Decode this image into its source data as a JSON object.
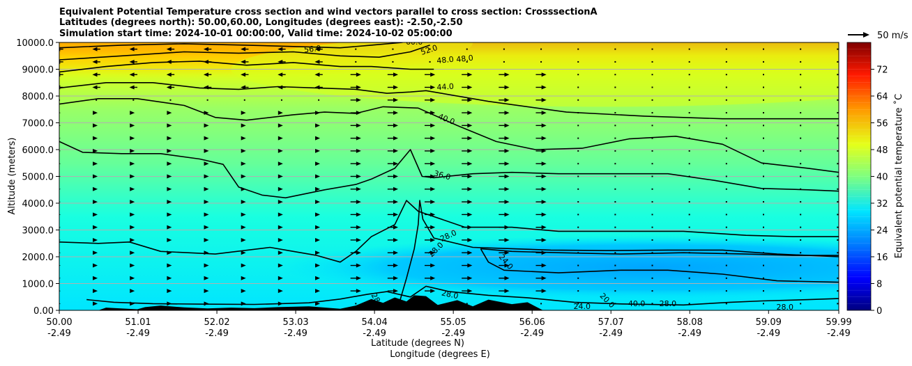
{
  "chart_data": {
    "type": "heatmap",
    "title_lines": [
      "Equivalent Potential Temperature cross section and wind vectors parallel to cross section: CrosssectionA",
      "Latitudes (degrees north): 50.00,60.00, Longitudes (degrees east): -2.50,-2.50",
      "Simulation start time: 2024-10-01 00:00:00, Valid time: 2024-10-02 05:00:00"
    ],
    "ylabel": "Altitude (meters)",
    "xlabel_lines": [
      "Latitude (degrees N)",
      "Longitude (degrees E)"
    ],
    "xlim": [
      50.0,
      59.99
    ],
    "ylim": [
      0,
      10000
    ],
    "x_ticks": [
      {
        "lat": 50.0,
        "lat_label": "50.00",
        "lon_label": "-2.49"
      },
      {
        "lat": 51.01,
        "lat_label": "51.01",
        "lon_label": "-2.49"
      },
      {
        "lat": 52.02,
        "lat_label": "52.02",
        "lon_label": "-2.49"
      },
      {
        "lat": 53.03,
        "lat_label": "53.03",
        "lon_label": "-2.49"
      },
      {
        "lat": 54.04,
        "lat_label": "54.04",
        "lon_label": "-2.49"
      },
      {
        "lat": 55.05,
        "lat_label": "55.05",
        "lon_label": "-2.49"
      },
      {
        "lat": 56.06,
        "lat_label": "56.06",
        "lon_label": "-2.49"
      },
      {
        "lat": 57.07,
        "lat_label": "57.07",
        "lon_label": "-2.49"
      },
      {
        "lat": 58.08,
        "lat_label": "58.08",
        "lon_label": "-2.49"
      },
      {
        "lat": 59.09,
        "lat_label": "59.09",
        "lon_label": "-2.49"
      },
      {
        "lat": 59.99,
        "lat_label": "59.99",
        "lon_label": "-2.49"
      }
    ],
    "y_ticks": [
      {
        "value": 0,
        "label": "0.00"
      },
      {
        "value": 1000,
        "label": "1000.0"
      },
      {
        "value": 2000,
        "label": "2000.0"
      },
      {
        "value": 3000,
        "label": "3000.0"
      },
      {
        "value": 4000,
        "label": "4000.0"
      },
      {
        "value": 5000,
        "label": "5000.0"
      },
      {
        "value": 6000,
        "label": "6000.0"
      },
      {
        "value": 7000,
        "label": "7000.0"
      },
      {
        "value": 8000,
        "label": "8000.0"
      },
      {
        "value": 9000,
        "label": "9000.0"
      },
      {
        "value": 10000,
        "label": "10000.0"
      }
    ],
    "grid": "horizontal",
    "colorbar": {
      "label": "Equivalent potential temperature ˚C",
      "range": [
        0,
        80
      ],
      "ticks": [
        0,
        8,
        16,
        24,
        32,
        40,
        48,
        56,
        64,
        72
      ],
      "colormap": "jet",
      "colors": [
        "#00007f",
        "#0000ff",
        "#007fff",
        "#00e5ff",
        "#7fff7f",
        "#e5ff19",
        "#ff9900",
        "#ff1900",
        "#7f0000"
      ]
    },
    "quiver_key": {
      "label": "50 m/s",
      "speed_ms": 50
    },
    "background_field": [
      {
        "x": 55.0,
        "y": 2000,
        "value": 25,
        "note": "cool low-level air north of 55.0N"
      },
      {
        "x": 52.0,
        "y": 2500,
        "value": 32
      },
      {
        "x": 52.0,
        "y": 6000,
        "value": 37
      },
      {
        "x": 55.0,
        "y": 8500,
        "value": 46
      },
      {
        "x": 51.0,
        "y": 9800,
        "value": 62
      }
    ],
    "contours": [
      {
        "level": 28,
        "points": [
          [
            50.35,
            400
          ],
          [
            50.7,
            300
          ],
          [
            51.2,
            250
          ],
          [
            51.8,
            230
          ],
          [
            52.5,
            220
          ],
          [
            53.2,
            280
          ],
          [
            53.6,
            420
          ],
          [
            53.95,
            600
          ],
          [
            54.2,
            700
          ],
          [
            54.5,
            500
          ],
          [
            54.7,
            900
          ],
          [
            55.0,
            700
          ],
          [
            55.5,
            560
          ],
          [
            56.0,
            470
          ],
          [
            56.6,
            300
          ],
          [
            57.2,
            240
          ],
          [
            58.0,
            200
          ],
          [
            58.6,
            300
          ],
          [
            59.0,
            350
          ],
          [
            59.6,
            400
          ],
          [
            59.99,
            440
          ]
        ]
      },
      {
        "level": 28,
        "points": [
          [
            54.35,
            200
          ],
          [
            54.45,
            1200
          ],
          [
            54.55,
            2300
          ],
          [
            54.6,
            3200
          ],
          [
            54.62,
            4100
          ],
          [
            54.66,
            3400
          ],
          [
            54.8,
            2700
          ],
          [
            55.3,
            2350
          ],
          [
            55.8,
            2300
          ],
          [
            56.3,
            2250
          ],
          [
            57.0,
            2230
          ],
          [
            57.8,
            2250
          ],
          [
            58.5,
            2250
          ],
          [
            59.2,
            2100
          ],
          [
            59.99,
            2000
          ]
        ]
      },
      {
        "level": 32,
        "points": [
          [
            50.0,
            2550
          ],
          [
            50.5,
            2500
          ],
          [
            50.9,
            2550
          ],
          [
            51.3,
            2200
          ],
          [
            52.0,
            2100
          ],
          [
            52.7,
            2350
          ],
          [
            53.0,
            2200
          ],
          [
            53.3,
            2050
          ],
          [
            53.6,
            1800
          ],
          [
            53.8,
            2200
          ],
          [
            54.0,
            2750
          ],
          [
            54.3,
            3200
          ],
          [
            54.45,
            4100
          ],
          [
            54.6,
            3700
          ],
          [
            55.2,
            3100
          ],
          [
            55.8,
            3100
          ],
          [
            56.4,
            2950
          ],
          [
            57.2,
            2950
          ],
          [
            58.0,
            2950
          ],
          [
            58.8,
            2800
          ],
          [
            59.4,
            2750
          ],
          [
            59.99,
            2750
          ]
        ]
      },
      {
        "level": 36,
        "points": [
          [
            50.0,
            6300
          ],
          [
            50.3,
            5900
          ],
          [
            50.8,
            5850
          ],
          [
            51.3,
            5850
          ],
          [
            51.8,
            5650
          ],
          [
            52.1,
            5450
          ],
          [
            52.3,
            4600
          ],
          [
            52.6,
            4300
          ],
          [
            52.9,
            4200
          ],
          [
            53.4,
            4500
          ],
          [
            53.8,
            4700
          ],
          [
            54.0,
            4900
          ],
          [
            54.3,
            5300
          ],
          [
            54.5,
            6000
          ],
          [
            54.65,
            5000
          ],
          [
            54.8,
            4950
          ],
          [
            55.3,
            5100
          ],
          [
            55.8,
            5150
          ],
          [
            56.4,
            5100
          ],
          [
            57.0,
            5100
          ],
          [
            57.8,
            5100
          ],
          [
            58.4,
            4850
          ],
          [
            59.0,
            4550
          ],
          [
            59.6,
            4500
          ],
          [
            59.99,
            4450
          ]
        ]
      },
      {
        "level": 40,
        "points": [
          [
            50.0,
            7700
          ],
          [
            50.5,
            7900
          ],
          [
            51.0,
            7900
          ],
          [
            51.6,
            7650
          ],
          [
            52.0,
            7200
          ],
          [
            52.4,
            7100
          ],
          [
            53.0,
            7300
          ],
          [
            53.4,
            7400
          ],
          [
            53.8,
            7350
          ],
          [
            54.15,
            7600
          ],
          [
            54.6,
            7550
          ],
          [
            55.1,
            6900
          ],
          [
            55.6,
            6300
          ],
          [
            56.1,
            6000
          ],
          [
            56.7,
            6050
          ],
          [
            57.3,
            6400
          ],
          [
            57.9,
            6500
          ],
          [
            58.5,
            6200
          ],
          [
            59.0,
            5500
          ],
          [
            59.6,
            5300
          ],
          [
            59.99,
            5150
          ]
        ]
      },
      {
        "level": 44,
        "points": [
          [
            50.0,
            8300
          ],
          [
            50.6,
            8500
          ],
          [
            51.2,
            8500
          ],
          [
            51.8,
            8300
          ],
          [
            52.3,
            8250
          ],
          [
            52.8,
            8350
          ],
          [
            53.3,
            8300
          ],
          [
            53.8,
            8250
          ],
          [
            54.2,
            8100
          ],
          [
            54.5,
            8150
          ],
          [
            54.7,
            8200
          ],
          [
            55.5,
            7800
          ],
          [
            56.5,
            7400
          ],
          [
            57.5,
            7250
          ],
          [
            58.5,
            7150
          ],
          [
            59.99,
            7150
          ]
        ]
      },
      {
        "level": 48,
        "points": [
          [
            50.0,
            8900
          ],
          [
            50.6,
            9100
          ],
          [
            51.2,
            9250
          ],
          [
            51.8,
            9300
          ],
          [
            52.4,
            9150
          ],
          [
            53.0,
            9250
          ],
          [
            53.6,
            9100
          ],
          [
            54.0,
            9100
          ],
          [
            54.5,
            9000
          ],
          [
            54.8,
            9000
          ]
        ]
      },
      {
        "level": 52,
        "points": [
          [
            50.0,
            9350
          ],
          [
            50.8,
            9500
          ],
          [
            51.6,
            9650
          ],
          [
            52.3,
            9600
          ],
          [
            53.0,
            9650
          ],
          [
            53.6,
            9500
          ],
          [
            54.1,
            9450
          ],
          [
            54.5,
            9650
          ],
          [
            54.75,
            9900
          ]
        ]
      },
      {
        "level": 56,
        "points": [
          [
            50.0,
            9800
          ],
          [
            50.8,
            9900
          ],
          [
            51.6,
            9950
          ],
          [
            52.4,
            9900
          ],
          [
            53.0,
            9850
          ],
          [
            53.6,
            9800
          ],
          [
            54.0,
            9900
          ],
          [
            54.4,
            10000
          ]
        ]
      },
      {
        "level": 24,
        "points": [
          [
            55.4,
            2300
          ],
          [
            55.8,
            2200
          ],
          [
            56.4,
            2150
          ],
          [
            57.2,
            2100
          ],
          [
            58.0,
            2150
          ],
          [
            58.8,
            2100
          ],
          [
            59.4,
            2050
          ],
          [
            59.99,
            2050
          ]
        ]
      },
      {
        "level": 24,
        "points": [
          [
            55.4,
            2300
          ],
          [
            55.5,
            1800
          ],
          [
            55.7,
            1500
          ],
          [
            56.4,
            1400
          ],
          [
            57.2,
            1500
          ],
          [
            57.8,
            1500
          ],
          [
            58.5,
            1350
          ],
          [
            59.2,
            1100
          ],
          [
            59.99,
            1050
          ]
        ]
      }
    ],
    "contour_labels": [
      {
        "text": "56.0",
        "x": 53.25,
        "y": 9660,
        "rotation": -6
      },
      {
        "text": "60.0",
        "x": 54.55,
        "y": 9920,
        "rotation": 0
      },
      {
        "text": "52.0",
        "x": 54.75,
        "y": 9630,
        "rotation": -18
      },
      {
        "text": "48.0",
        "x": 54.95,
        "y": 9250,
        "rotation": -6
      },
      {
        "text": "48.0",
        "x": 55.2,
        "y": 9300,
        "rotation": -6
      },
      {
        "text": "44.0",
        "x": 54.95,
        "y": 8250,
        "rotation": -4
      },
      {
        "text": "40.0",
        "x": 54.95,
        "y": 7050,
        "rotation": 22
      },
      {
        "text": "36.0",
        "x": 54.9,
        "y": 4950,
        "rotation": 15
      },
      {
        "text": "28.0",
        "x": 55.0,
        "y": 2700,
        "rotation": -25
      },
      {
        "text": "28.0",
        "x": 54.85,
        "y": 2200,
        "rotation": -45
      },
      {
        "text": "24.0",
        "x": 55.7,
        "y": 1750,
        "rotation": 50
      },
      {
        "text": "28.0",
        "x": 55.0,
        "y": 500,
        "rotation": 12
      },
      {
        "text": "28.0",
        "x": 54.05,
        "y": 300,
        "rotation": 60
      },
      {
        "text": "24.0",
        "x": 56.7,
        "y": 50,
        "rotation": 0
      },
      {
        "text": "20.0",
        "x": 57.0,
        "y": 300,
        "rotation": 45
      },
      {
        "text": "40.0",
        "x": 57.4,
        "y": 150,
        "rotation": 0
      },
      {
        "text": "28.0",
        "x": 57.8,
        "y": 150,
        "rotation": 0
      },
      {
        "text": "28.0",
        "x": 59.3,
        "y": 30,
        "rotation": 0
      }
    ],
    "terrain": [
      [
        50.0,
        0
      ],
      [
        50.5,
        0
      ],
      [
        50.6,
        100
      ],
      [
        51.0,
        40
      ],
      [
        51.1,
        120
      ],
      [
        51.3,
        180
      ],
      [
        51.6,
        110
      ],
      [
        51.9,
        70
      ],
      [
        52.2,
        100
      ],
      [
        52.5,
        80
      ],
      [
        52.8,
        120
      ],
      [
        53.2,
        150
      ],
      [
        53.6,
        60
      ],
      [
        53.8,
        180
      ],
      [
        54.0,
        420
      ],
      [
        54.15,
        280
      ],
      [
        54.3,
        480
      ],
      [
        54.45,
        330
      ],
      [
        54.55,
        560
      ],
      [
        54.7,
        530
      ],
      [
        54.85,
        200
      ],
      [
        55.1,
        380
      ],
      [
        55.3,
        150
      ],
      [
        55.5,
        400
      ],
      [
        55.8,
        230
      ],
      [
        56.0,
        300
      ],
      [
        56.1,
        150
      ],
      [
        56.2,
        0
      ],
      [
        59.99,
        0
      ]
    ],
    "wind_vectors": [
      {
        "x_range": [
          50.0,
          53.5
        ],
        "y_range": [
          8000,
          10000
        ],
        "u_ms": -6,
        "description": "weak northerly (leftward) flow aloft"
      },
      {
        "x_range": [
          53.5,
          56.5
        ],
        "y_range": [
          500,
          9000
        ],
        "u_ms": 8,
        "description": "southerly (rightward) flow"
      },
      {
        "x_range": [
          50.0,
          53.5
        ],
        "y_range": [
          0,
          7500
        ],
        "u_ms": 2,
        "description": "light winds"
      },
      {
        "x_range": [
          56.5,
          59.99
        ],
        "y_range": [
          0,
          10000
        ],
        "u_ms": 1,
        "description": "near calm"
      }
    ]
  }
}
